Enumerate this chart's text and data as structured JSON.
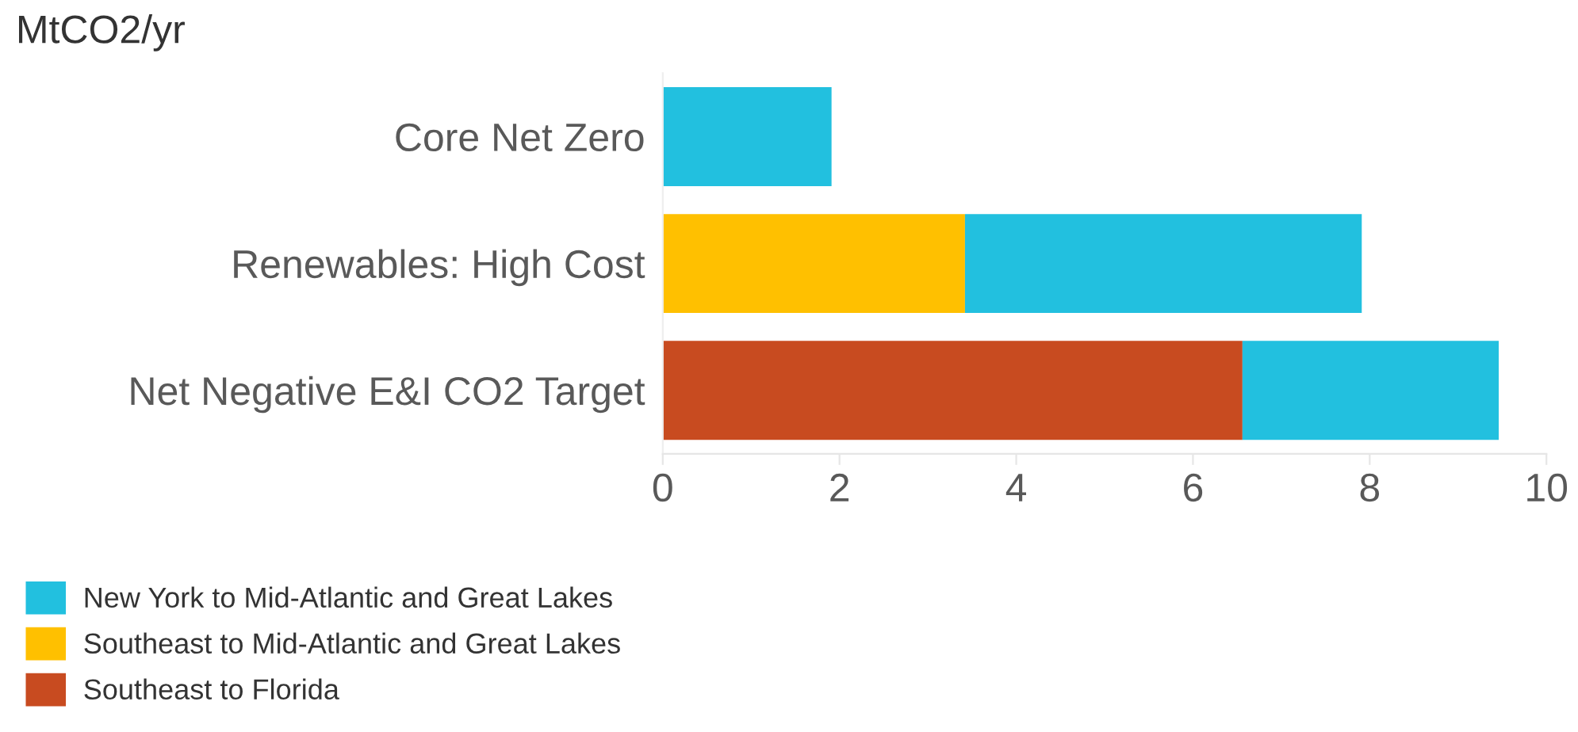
{
  "chart_data": {
    "type": "bar",
    "orientation": "horizontal",
    "stacked": true,
    "title": "MtCO2/yr",
    "categories": [
      "Core Net Zero",
      "Renewables: High Cost",
      "Net Negative E&I CO2 Target"
    ],
    "series": [
      {
        "name": "Southeast to Florida",
        "color": "#c84b20",
        "values": [
          null,
          null,
          6.56
        ]
      },
      {
        "name": "Southeast to Mid-Atlantic and Great Lakes",
        "color": "#ffc000",
        "values": [
          null,
          3.42,
          null
        ]
      },
      {
        "name": "New York to Mid-Atlantic and Great Lakes",
        "color": "#22c0df",
        "values": [
          1.91,
          4.49,
          2.9
        ]
      }
    ],
    "xlim": [
      0,
      10
    ],
    "xticks": [
      0,
      2,
      4,
      6,
      8,
      10
    ],
    "grid": false,
    "legend": "bottom left"
  }
}
